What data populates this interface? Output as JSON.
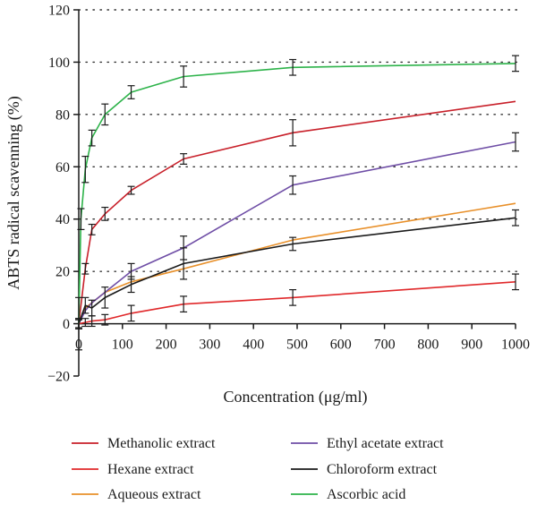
{
  "chart_data": {
    "type": "line",
    "title": "",
    "xlabel": "Concentration (μg/ml)",
    "ylabel": "ABTS radical scavenning (%)",
    "xlim": [
      0,
      1000
    ],
    "ylim": [
      -20,
      120
    ],
    "xticks": [
      0,
      100,
      200,
      300,
      400,
      500,
      600,
      700,
      800,
      900,
      1000
    ],
    "yticks": [
      -20,
      0,
      20,
      40,
      60,
      80,
      100,
      120
    ],
    "grid": "horizontal dotted",
    "legend_position": "bottom",
    "series": [
      {
        "name": "Methanolic extract",
        "color": "#c8202a",
        "points": [
          [
            0,
            0
          ],
          [
            15,
            21
          ],
          [
            30,
            36
          ],
          [
            60,
            42
          ],
          [
            120,
            51
          ],
          [
            240,
            63
          ],
          [
            490,
            73
          ],
          [
            1000,
            85
          ]
        ],
        "error_bars": [
          [
            0,
            0,
            2
          ],
          [
            15,
            21,
            2
          ],
          [
            30,
            36,
            2
          ],
          [
            60,
            42,
            2.5
          ],
          [
            120,
            51,
            1.5
          ],
          [
            240,
            63,
            2
          ],
          [
            490,
            73,
            5
          ],
          [
            1000,
            null,
            0
          ]
        ]
      },
      {
        "name": "Hexane extract",
        "color": "#e0282a",
        "points": [
          [
            0,
            0
          ],
          [
            15,
            0.5
          ],
          [
            30,
            1
          ],
          [
            60,
            1.5
          ],
          [
            120,
            4
          ],
          [
            240,
            7.5
          ],
          [
            490,
            10
          ],
          [
            1000,
            16
          ]
        ],
        "error_bars": [
          [
            0,
            0,
            1.5
          ],
          [
            15,
            0.5,
            1.5
          ],
          [
            30,
            1,
            2
          ],
          [
            60,
            1.5,
            2
          ],
          [
            120,
            4,
            3
          ],
          [
            240,
            7.5,
            3
          ],
          [
            490,
            10,
            3
          ],
          [
            1000,
            16,
            3
          ]
        ]
      },
      {
        "name": "Aqueous extract",
        "color": "#e8902a",
        "points": [
          [
            0,
            0
          ],
          [
            15,
            6
          ],
          [
            30,
            8
          ],
          [
            60,
            12
          ],
          [
            120,
            16
          ],
          [
            240,
            21
          ],
          [
            490,
            32
          ],
          [
            1000,
            46
          ]
        ],
        "error_bars": []
      },
      {
        "name": "Ethyl acetate extract",
        "color": "#6f4ea6",
        "points": [
          [
            0,
            0
          ],
          [
            15,
            5
          ],
          [
            30,
            8
          ],
          [
            60,
            12
          ],
          [
            120,
            20
          ],
          [
            240,
            29
          ],
          [
            490,
            53
          ],
          [
            1000,
            69.5
          ]
        ],
        "error_bars": [
          [
            120,
            20,
            3
          ],
          [
            240,
            29,
            4.5
          ],
          [
            490,
            53,
            3.5
          ],
          [
            1000,
            69.5,
            3.5
          ]
        ]
      },
      {
        "name": "Chloroform extract",
        "color": "#1a1a1a",
        "points": [
          [
            0,
            0
          ],
          [
            15,
            7
          ],
          [
            30,
            6
          ],
          [
            60,
            10
          ],
          [
            120,
            15
          ],
          [
            240,
            23
          ],
          [
            490,
            30.5
          ],
          [
            1000,
            40.5
          ]
        ],
        "error_bars": [
          [
            0,
            0,
            2
          ],
          [
            15,
            7,
            3
          ],
          [
            30,
            6,
            3
          ],
          [
            60,
            10,
            4
          ],
          [
            120,
            15,
            3
          ],
          [
            240,
            23,
            6
          ],
          [
            490,
            30.5,
            2.5
          ],
          [
            1000,
            40.5,
            3
          ]
        ]
      },
      {
        "name": "Ascorbic acid",
        "color": "#2db34a",
        "points": [
          [
            0,
            0
          ],
          [
            5,
            40
          ],
          [
            15,
            59
          ],
          [
            30,
            71
          ],
          [
            60,
            80
          ],
          [
            120,
            88.5
          ],
          [
            240,
            94.5
          ],
          [
            490,
            98
          ],
          [
            1000,
            99.5
          ]
        ],
        "error_bars": [
          [
            0,
            0,
            10
          ],
          [
            5,
            40,
            4
          ],
          [
            15,
            59,
            5
          ],
          [
            30,
            71,
            3
          ],
          [
            60,
            80,
            4
          ],
          [
            120,
            88.5,
            2.5
          ],
          [
            240,
            94.5,
            4
          ],
          [
            490,
            98,
            3
          ],
          [
            1000,
            99.5,
            3
          ]
        ]
      }
    ]
  }
}
